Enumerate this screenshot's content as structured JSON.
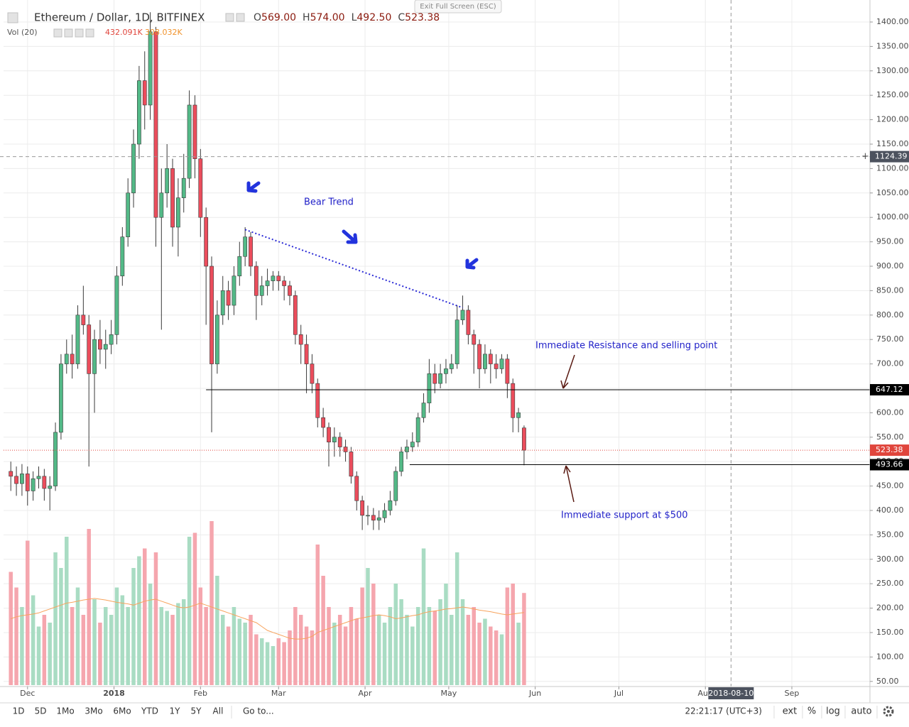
{
  "chart_data": {
    "type": "candlestick",
    "title": "Ethereum / Dollar, 1D, BITFINEX",
    "ohlc_legend": [
      {
        "label": "O",
        "value": "569.00"
      },
      {
        "label": "H",
        "value": "574.00"
      },
      {
        "label": "L",
        "value": "492.50"
      },
      {
        "label": "C",
        "value": "523.38"
      }
    ],
    "volume_title": "Vol (20)",
    "volume_legend": [
      "432.091K",
      "308.032K"
    ],
    "open": [
      480,
      470,
      455,
      475,
      440,
      465,
      470,
      445,
      450,
      560,
      700,
      720,
      700,
      800,
      780,
      680,
      750,
      730,
      740,
      760,
      880,
      960,
      1050,
      1150,
      1280,
      1230,
      1380,
      1000,
      1050,
      1100,
      980,
      1040,
      1080,
      1230,
      1120,
      1000,
      900,
      700,
      800,
      850,
      820,
      880,
      920,
      960,
      900,
      840,
      860,
      870,
      880,
      870,
      860,
      840,
      760,
      740,
      700,
      660,
      590,
      570,
      540,
      550,
      530,
      520,
      470,
      420,
      390,
      390,
      380,
      385,
      400,
      420,
      480,
      520,
      530,
      540,
      590,
      620,
      680,
      660,
      680,
      690,
      700,
      790,
      810,
      760,
      740,
      690,
      720,
      700,
      690,
      710,
      660,
      590,
      569
    ],
    "high": [
      500,
      490,
      495,
      490,
      480,
      490,
      485,
      470,
      580,
      720,
      750,
      760,
      820,
      860,
      800,
      770,
      790,
      770,
      790,
      900,
      980,
      1080,
      1180,
      1310,
      1340,
      1420,
      1390,
      1100,
      1150,
      1120,
      1080,
      1130,
      1260,
      1250,
      1140,
      1020,
      920,
      830,
      880,
      870,
      900,
      950,
      980,
      970,
      910,
      880,
      895,
      890,
      890,
      880,
      870,
      850,
      780,
      760,
      720,
      670,
      610,
      580,
      570,
      560,
      545,
      530,
      480,
      430,
      410,
      405,
      400,
      415,
      440,
      490,
      530,
      545,
      560,
      600,
      640,
      710,
      700,
      700,
      710,
      720,
      820,
      840,
      820,
      770,
      750,
      740,
      730,
      720,
      720,
      720,
      670,
      610,
      574
    ],
    "low": [
      440,
      430,
      430,
      410,
      420,
      445,
      420,
      400,
      440,
      545,
      680,
      670,
      690,
      760,
      490,
      600,
      700,
      690,
      720,
      740,
      860,
      940,
      1020,
      1120,
      1180,
      1200,
      940,
      770,
      1020,
      940,
      920,
      1010,
      1060,
      1080,
      960,
      780,
      560,
      680,
      780,
      790,
      800,
      860,
      900,
      880,
      790,
      820,
      840,
      850,
      850,
      830,
      820,
      740,
      700,
      640,
      640,
      570,
      550,
      490,
      510,
      510,
      500,
      455,
      400,
      360,
      370,
      360,
      360,
      375,
      390,
      410,
      470,
      505,
      520,
      530,
      580,
      600,
      640,
      650,
      660,
      680,
      690,
      780,
      740,
      680,
      650,
      680,
      660,
      670,
      680,
      630,
      560,
      560,
      492.5
    ],
    "close": [
      470,
      455,
      475,
      440,
      465,
      470,
      445,
      450,
      560,
      700,
      720,
      700,
      800,
      780,
      680,
      750,
      730,
      740,
      760,
      880,
      960,
      1050,
      1150,
      1280,
      1230,
      1380,
      1000,
      1050,
      1100,
      980,
      1040,
      1080,
      1230,
      1120,
      1000,
      900,
      700,
      800,
      850,
      820,
      880,
      920,
      960,
      900,
      840,
      860,
      870,
      880,
      870,
      860,
      840,
      760,
      740,
      700,
      660,
      590,
      570,
      540,
      550,
      530,
      520,
      470,
      420,
      390,
      390,
      380,
      385,
      400,
      420,
      480,
      520,
      530,
      540,
      590,
      620,
      680,
      660,
      680,
      690,
      700,
      790,
      810,
      760,
      740,
      690,
      720,
      700,
      690,
      710,
      660,
      590,
      600,
      523.38
    ],
    "volume": [
      290,
      250,
      200,
      370,
      230,
      150,
      180,
      160,
      340,
      300,
      380,
      200,
      250,
      180,
      400,
      220,
      160,
      200,
      180,
      250,
      230,
      200,
      300,
      330,
      350,
      260,
      340,
      200,
      190,
      180,
      210,
      220,
      380,
      390,
      250,
      200,
      420,
      280,
      180,
      150,
      200,
      170,
      160,
      180,
      130,
      120,
      110,
      100,
      120,
      110,
      140,
      200,
      180,
      150,
      140,
      360,
      280,
      200,
      160,
      180,
      150,
      200,
      170,
      250,
      300,
      260,
      180,
      160,
      200,
      260,
      220,
      180,
      150,
      200,
      350,
      200,
      190,
      220,
      260,
      180,
      340,
      220,
      180,
      200,
      160,
      170,
      150,
      140,
      130,
      250,
      260,
      160,
      236
    ],
    "volume_ma": [
      170,
      175,
      178,
      180,
      182,
      185,
      190,
      195,
      200,
      205,
      210,
      212,
      215,
      218,
      220,
      222,
      220,
      218,
      215,
      212,
      210,
      208,
      205,
      210,
      215,
      218,
      220,
      215,
      210,
      205,
      200,
      198,
      200,
      205,
      210,
      205,
      200,
      195,
      190,
      185,
      180,
      175,
      170,
      165,
      160,
      150,
      140,
      135,
      130,
      125,
      120,
      118,
      118,
      120,
      125,
      135,
      140,
      145,
      150,
      155,
      160,
      165,
      170,
      172,
      175,
      178,
      180,
      178,
      175,
      170,
      172,
      175,
      178,
      180,
      185,
      188,
      190,
      192,
      195,
      196,
      198,
      200,
      198,
      195,
      192,
      190,
      188,
      185,
      182,
      180,
      182,
      184,
      186
    ],
    "up_color": "#53b987",
    "down_color": "#eb4d5c",
    "volume_up_color": "#a9dcc3",
    "volume_down_color": "#f5a6ae",
    "ma_color": "#f7a35c",
    "ylim": [
      39.5,
      1437.8
    ],
    "yticks": [
      {
        "value": 50,
        "label": "50.00"
      },
      {
        "value": 100,
        "label": "100.00"
      },
      {
        "value": 150,
        "label": "150.00"
      },
      {
        "value": 200,
        "label": "200.00"
      },
      {
        "value": 250,
        "label": "250.00"
      },
      {
        "value": 300,
        "label": "300.00"
      },
      {
        "value": 350,
        "label": "350.00"
      },
      {
        "value": 400,
        "label": "400.00"
      },
      {
        "value": 450,
        "label": "450.00"
      },
      {
        "value": 500,
        "label": "500.00"
      },
      {
        "value": 550,
        "label": "550.00"
      },
      {
        "value": 600,
        "label": "600.00"
      },
      {
        "value": 650,
        "label": "650.00"
      },
      {
        "value": 700,
        "label": "700.00"
      },
      {
        "value": 750,
        "label": "750.00"
      },
      {
        "value": 800,
        "label": "800.00"
      },
      {
        "value": 850,
        "label": "850.00"
      },
      {
        "value": 900,
        "label": "900.00"
      },
      {
        "value": 950,
        "label": "950.00"
      },
      {
        "value": 1000,
        "label": "1000.00"
      },
      {
        "value": 1050,
        "label": "1050.00"
      },
      {
        "value": 1100,
        "label": "1100.00"
      },
      {
        "value": 1150,
        "label": "1150.00"
      },
      {
        "value": 1200,
        "label": "1200.00"
      },
      {
        "value": 1250,
        "label": "1250.00"
      },
      {
        "value": 1300,
        "label": "1300.00"
      },
      {
        "value": 1350,
        "label": "1350.00"
      },
      {
        "value": 1400,
        "label": "1400.00"
      }
    ],
    "xlim": [
      -1.3,
      154
    ],
    "xticks": [
      {
        "value": 3,
        "label": "Dec"
      },
      {
        "value": 18.5,
        "label": "2018"
      },
      {
        "value": 34,
        "label": "Feb"
      },
      {
        "value": 48,
        "label": "Mar"
      },
      {
        "value": 63.5,
        "label": "Apr"
      },
      {
        "value": 78.5,
        "label": "May"
      },
      {
        "value": 94,
        "label": "Jun"
      },
      {
        "value": 109,
        "label": "Jul"
      },
      {
        "value": 124.5,
        "label": "Aug"
      },
      {
        "value": 140,
        "label": "Sep"
      }
    ],
    "volume_lim": [
      0,
      500
    ],
    "grid": true,
    "price_lines": [
      {
        "value": 647.12,
        "from": 35,
        "color": "#000000",
        "style": "solid"
      },
      {
        "value": 493.66,
        "from": 71.5,
        "color": "#000000",
        "style": "solid"
      },
      {
        "value": 523.38,
        "from": -1.3,
        "color": "#e0453c",
        "style": "dotted"
      }
    ],
    "trendline": {
      "x": [
        42,
        81
      ],
      "y": [
        975,
        815
      ],
      "color": "#2a2ad6"
    },
    "crosshair": {
      "x": 129.1,
      "label": "2018-08-10",
      "price": 1124.39
    },
    "annotations": [
      {
        "text": "Bear Trend"
      },
      {
        "text": "Immediate Resistance and selling point"
      },
      {
        "text": "Immediate support at $500"
      }
    ]
  },
  "ui": {
    "exit_fullscreen": "Exit Full Screen (ESC)",
    "ranges": [
      "1D",
      "5D",
      "1Mo",
      "3Mo",
      "6Mo",
      "YTD",
      "1Y",
      "5Y",
      "All"
    ],
    "goto": "Go to...",
    "clock": "22:21:17 (UTC+3)",
    "options": [
      "ext",
      "%",
      "log",
      "auto"
    ]
  }
}
